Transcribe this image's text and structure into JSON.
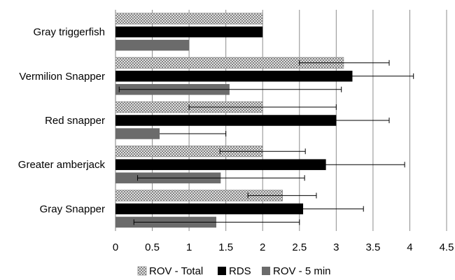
{
  "chart_data": {
    "type": "bar",
    "orientation": "horizontal",
    "title": "",
    "xlabel": "",
    "ylabel": "",
    "xlim": [
      0,
      4.5
    ],
    "x_ticks": [
      "0",
      "0.5",
      "1",
      "1.5",
      "2",
      "2.5",
      "3",
      "3.5",
      "4",
      "4.5"
    ],
    "grid": "vertical",
    "legend_position": "bottom",
    "categories": [
      "Gray triggerfish",
      "Vermilion Snapper",
      "Red snapper",
      "Greater amberjack",
      "Gray Snapper"
    ],
    "series": [
      {
        "name": "ROV - Total",
        "pattern": "crosshatch",
        "color": "#bfbfbf",
        "values": [
          2.0,
          3.1,
          2.0,
          2.0,
          2.27
        ],
        "error_low": [
          null,
          2.5,
          1.0,
          1.42,
          1.8
        ],
        "error_high": [
          null,
          3.72,
          3.0,
          2.58,
          2.73
        ]
      },
      {
        "name": "RDS",
        "color": "#000000",
        "values": [
          2.0,
          3.22,
          3.0,
          2.86,
          2.55
        ],
        "error_low": [
          null,
          2.4,
          2.28,
          1.8,
          1.75
        ],
        "error_high": [
          null,
          4.05,
          3.72,
          3.93,
          3.37
        ]
      },
      {
        "name": "ROV - 5 min",
        "color": "#6b6b6b",
        "values": [
          1.0,
          1.55,
          0.6,
          1.43,
          1.37
        ],
        "error_low": [
          null,
          0.05,
          null,
          0.3,
          0.25
        ],
        "error_high": [
          null,
          3.07,
          1.5,
          2.57,
          2.5
        ]
      }
    ]
  }
}
